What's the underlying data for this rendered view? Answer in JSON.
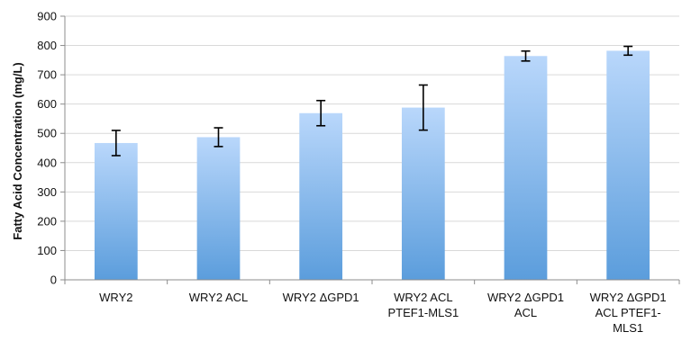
{
  "chart_data": {
    "type": "bar",
    "title": "",
    "xlabel": "",
    "ylabel": "Fatty Acid Concentration (mg/L)",
    "ylim": [
      0,
      900
    ],
    "yticks": [
      0,
      100,
      200,
      300,
      400,
      500,
      600,
      700,
      800,
      900
    ],
    "grid": true,
    "legend": "none",
    "categories": [
      [
        "WRY2"
      ],
      [
        "WRY2 ACL"
      ],
      [
        "WRY2 ΔGPD1"
      ],
      [
        "WRY2 ACL",
        "PTEF1-MLS1"
      ],
      [
        "WRY2 ΔGPD1",
        "ACL"
      ],
      [
        "WRY2 ΔGPD1",
        "ACL PTEF1-",
        "MLS1"
      ]
    ],
    "values": [
      467,
      487,
      569,
      588,
      764,
      782
    ],
    "errors": [
      43,
      32,
      43,
      77,
      17,
      15
    ],
    "colors": {
      "bar_top": "#b9d7fb",
      "bar_bottom": "#5b9ddc",
      "grid": "#d9d9d9",
      "error_bar": "#000000"
    }
  }
}
